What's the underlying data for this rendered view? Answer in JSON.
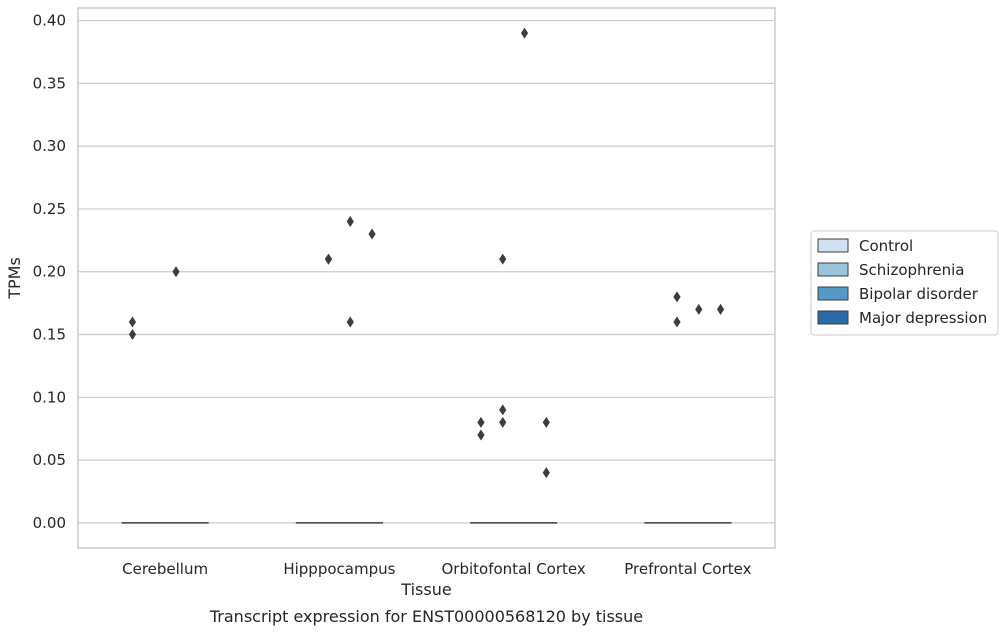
{
  "chart_data": {
    "type": "box",
    "title": "",
    "caption": "Transcript expression for ENST00000568120 by tissue",
    "xlabel": "Tissue",
    "ylabel": "TPMs",
    "ylim": [
      -0.02,
      0.41
    ],
    "yticks": [
      0.0,
      0.05,
      0.1,
      0.15,
      0.2,
      0.25,
      0.3,
      0.35,
      0.4
    ],
    "ytick_labels": [
      "0.00",
      "0.05",
      "0.10",
      "0.15",
      "0.20",
      "0.25",
      "0.30",
      "0.35",
      "0.40"
    ],
    "grid": true,
    "legend_position": "right",
    "categories": [
      "Cerebellum",
      "Hipppocampus",
      "Orbitofontal Cortex",
      "Prefrontal Cortex"
    ],
    "series": [
      {
        "name": "Control",
        "color": "#d1e1ef",
        "median": [
          0,
          0,
          0,
          0
        ],
        "outliers": [
          [
            0.15,
            0.16
          ],
          [],
          [
            0.07,
            0.08
          ],
          []
        ]
      },
      {
        "name": "Schizophrenia",
        "color": "#9ac3dc",
        "median": [
          0,
          0,
          0,
          0
        ],
        "outliers": [
          [],
          [
            0.21,
            0.21
          ],
          [
            0.21,
            0.08,
            0.09
          ],
          [
            0.16,
            0.18
          ]
        ]
      },
      {
        "name": "Bipolar disorder",
        "color": "#5599c6",
        "median": [
          0,
          0,
          0,
          0
        ],
        "outliers": [
          [
            0.2
          ],
          [
            0.16,
            0.24
          ],
          [
            0.39
          ],
          [
            0.17
          ]
        ]
      },
      {
        "name": "Major depression",
        "color": "#2a6aa8",
        "median": [
          0,
          0,
          0,
          0
        ],
        "outliers": [
          [],
          [
            0.23
          ],
          [
            0.04,
            0.08
          ],
          [
            0.17
          ]
        ]
      }
    ]
  }
}
